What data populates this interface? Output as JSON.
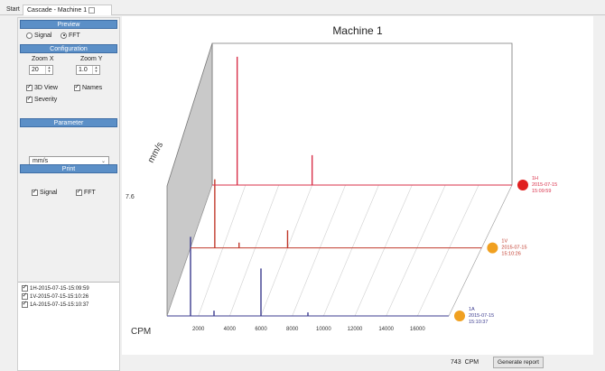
{
  "tabs": {
    "start": "Start",
    "cascade": "Cascade - Machine 1"
  },
  "preview": {
    "heading": "Preview",
    "signal_label": "Signal",
    "fft_label": "FFT",
    "selected": "FFT"
  },
  "configuration": {
    "heading": "Configuration",
    "zoom_x_label": "Zoom X",
    "zoom_x_value": "20",
    "zoom_y_label": "Zoom Y",
    "zoom_y_value": "1.0",
    "view3d_label": "3D View",
    "view3d_checked": true,
    "names_label": "Names",
    "names_checked": true,
    "severity_label": "Severity",
    "severity_checked": true
  },
  "parameter": {
    "heading": "Parameter",
    "selected": "mm/s"
  },
  "print": {
    "heading": "Print",
    "signal_label": "Signal",
    "signal_checked": true,
    "fft_label": "FFT",
    "fft_checked": true
  },
  "measurements": [
    {
      "label": "1H-2015-07-15-15:09:59",
      "checked": true
    },
    {
      "label": "1V-2015-07-15-15:10:26",
      "checked": true
    },
    {
      "label": "1A-2015-07-15-15:10:37",
      "checked": true
    }
  ],
  "chart_data": {
    "type": "line",
    "title": "Machine 1",
    "xlabel": "CPM",
    "ylabel": "mm/s",
    "y_max_label": "7.6",
    "xlim": [
      0,
      18000
    ],
    "x_ticks": [
      "2000",
      "4000",
      "6000",
      "8000",
      "10000",
      "12000",
      "14000",
      "16000"
    ],
    "series": [
      {
        "name": "1A",
        "date": "2015-07-15",
        "time": "15:10:37",
        "line_color": "#3b3b8f",
        "severity_color": "#f0a020",
        "peaks": [
          {
            "cpm": 1500,
            "value": 4.5
          },
          {
            "cpm": 3000,
            "value": 0.3
          },
          {
            "cpm": 6000,
            "value": 2.7
          },
          {
            "cpm": 9000,
            "value": 0.2
          }
        ]
      },
      {
        "name": "1V",
        "date": "2015-07-15",
        "time": "15:10:26",
        "line_color": "#c0392b",
        "severity_color": "#f0a020",
        "peaks": [
          {
            "cpm": 1500,
            "value": 3.9
          },
          {
            "cpm": 3000,
            "value": 0.3
          },
          {
            "cpm": 6000,
            "value": 1.0
          }
        ]
      },
      {
        "name": "1H",
        "date": "2015-07-15",
        "time": "15:09:59",
        "line_color": "#d9304a",
        "severity_color": "#e02020",
        "peaks": [
          {
            "cpm": 1500,
            "value": 7.3
          },
          {
            "cpm": 6000,
            "value": 1.7
          }
        ]
      }
    ]
  },
  "status": {
    "cpm_value": "743",
    "cpm_unit": "CPM",
    "generate_label": "Generate report"
  }
}
